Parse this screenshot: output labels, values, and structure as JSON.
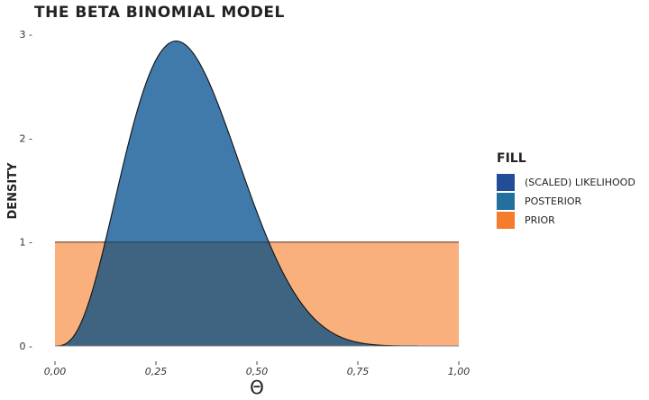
{
  "chart_data": {
    "type": "area",
    "title": "The Beta Binomial Model",
    "xlabel": "Θ",
    "ylabel": "Density",
    "xlim": [
      0,
      1
    ],
    "ylim": [
      0,
      3
    ],
    "x_ticks": [
      "0.00",
      "0.25",
      "0.50",
      "0.75",
      "1.00"
    ],
    "x_tick_values": [
      0,
      0.25,
      0.5,
      0.75,
      1.0
    ],
    "y_ticks": [
      "0",
      "1",
      "2",
      "3"
    ],
    "y_tick_values": [
      0,
      1,
      2,
      3
    ],
    "grid": false,
    "legend_position": "right",
    "legend_title": "Fill",
    "x": [
      0,
      0.05,
      0.1,
      0.15,
      0.2,
      0.25,
      0.3,
      0.35,
      0.4,
      0.45,
      0.5,
      0.55,
      0.6,
      0.65,
      0.7,
      0.75,
      0.8,
      0.85,
      0.9,
      0.95,
      1.0
    ],
    "series": [
      {
        "name": "(scaled) likelihood",
        "color": "#234d96",
        "values": [
          0,
          0.115,
          0.631,
          1.428,
          2.215,
          2.753,
          2.935,
          2.774,
          2.365,
          1.831,
          1.289,
          0.821,
          0.467,
          0.233,
          0.099,
          0.034,
          0.009,
          0.0015,
          0.0001,
          0,
          0
        ]
      },
      {
        "name": "posterior",
        "color": "#21709d",
        "values": [
          0,
          0.115,
          0.631,
          1.428,
          2.215,
          2.753,
          2.935,
          2.774,
          2.365,
          1.831,
          1.289,
          0.821,
          0.467,
          0.233,
          0.099,
          0.034,
          0.009,
          0.0015,
          0.0001,
          0,
          0
        ]
      },
      {
        "name": "prior",
        "color": "#f47c2a",
        "values": [
          1,
          1,
          1,
          1,
          1,
          1,
          1,
          1,
          1,
          1,
          1,
          1,
          1,
          1,
          1,
          1,
          1,
          1,
          1,
          1,
          1
        ]
      }
    ]
  },
  "legend": {
    "title": "Fill",
    "items": [
      {
        "label": "(scaled) likelihood",
        "color": "#234d96"
      },
      {
        "label": "posterior",
        "color": "#21709d"
      },
      {
        "label": "prior",
        "color": "#f47c2a"
      }
    ]
  }
}
